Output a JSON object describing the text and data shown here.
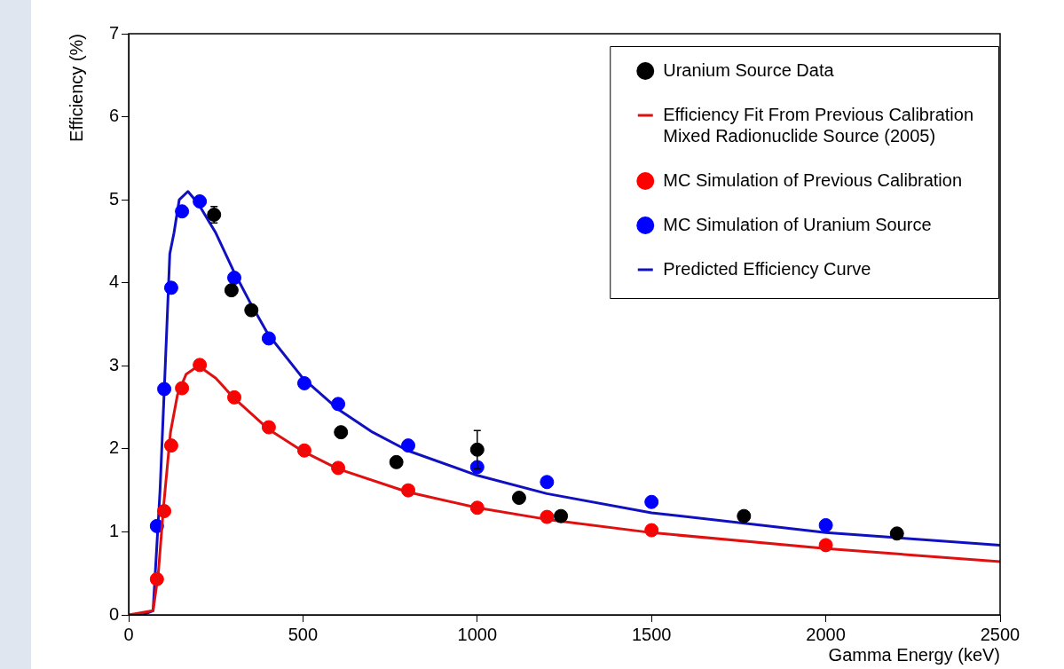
{
  "chart_data": {
    "type": "scatter",
    "xlabel": "Gamma Energy (keV)",
    "ylabel": "Efficiency (%)",
    "xlim": [
      0,
      2500
    ],
    "xticks": [
      0,
      500,
      1000,
      1500,
      2000,
      2500
    ],
    "ylim": [
      0,
      7
    ],
    "yticks": [
      0,
      1,
      2,
      3,
      4,
      5,
      6,
      7
    ],
    "grid": false,
    "legend": "top right",
    "marker": "circle",
    "series": [
      {
        "name": "Uranium Source Data",
        "color": "#000000",
        "x": [
          245,
          295,
          352,
          609,
          768,
          1000,
          1120,
          1240,
          1765,
          2204
        ],
        "values": [
          4.82,
          3.91,
          3.67,
          2.2,
          1.84,
          1.99,
          1.41,
          1.19,
          1.19,
          0.98
        ],
        "errors": [
          0.1,
          0.06,
          null,
          null,
          null,
          0.23,
          null,
          null,
          null,
          null
        ]
      },
      {
        "name": "Efficiency Fit From Previous Calibration\nMixed Radionuclide Source (2005)",
        "type": "line",
        "marker": "none",
        "color": "#e01010",
        "x": [
          0,
          70,
          85,
          100,
          120,
          140,
          165,
          190,
          210,
          250,
          300,
          400,
          500,
          600,
          800,
          1000,
          1200,
          1500,
          2000,
          2500
        ],
        "values": [
          0,
          0.05,
          0.5,
          1.3,
          2.2,
          2.65,
          2.9,
          2.97,
          2.97,
          2.85,
          2.62,
          2.24,
          1.97,
          1.76,
          1.48,
          1.29,
          1.15,
          0.99,
          0.8,
          0.64
        ]
      },
      {
        "name": "MC Simulation of Previous Calibration",
        "color": "#ff0000",
        "x": [
          81,
          102,
          122,
          153,
          204,
          303,
          402,
          504,
          601,
          802,
          1000,
          1200,
          1500,
          2000
        ],
        "values": [
          0.43,
          1.25,
          2.04,
          2.73,
          3.01,
          2.62,
          2.26,
          1.98,
          1.77,
          1.5,
          1.29,
          1.18,
          1.02,
          0.84
        ]
      },
      {
        "name": "MC Simulation of Uranium Source",
        "color": "#0000ff",
        "x": [
          81,
          102,
          122,
          153,
          204,
          303,
          402,
          504,
          601,
          802,
          1000,
          1200,
          1500,
          2000
        ],
        "values": [
          1.07,
          2.72,
          3.94,
          4.86,
          4.98,
          4.06,
          3.33,
          2.79,
          2.54,
          2.04,
          1.78,
          1.6,
          1.36,
          1.08
        ]
      },
      {
        "name": "Predicted Efficiency Curve",
        "type": "line",
        "marker": "none",
        "color": "#1010c0",
        "x": [
          0,
          40,
          70,
          90,
          105,
          118,
          130,
          145,
          170,
          200,
          250,
          300,
          350,
          400,
          500,
          600,
          700,
          800,
          1000,
          1200,
          1500,
          2000,
          2500
        ],
        "values": [
          0,
          0,
          0.05,
          1.5,
          3.0,
          4.35,
          4.6,
          5.0,
          5.1,
          4.95,
          4.6,
          4.15,
          3.75,
          3.38,
          2.85,
          2.48,
          2.2,
          1.98,
          1.68,
          1.46,
          1.23,
          0.99,
          0.84
        ]
      }
    ]
  }
}
